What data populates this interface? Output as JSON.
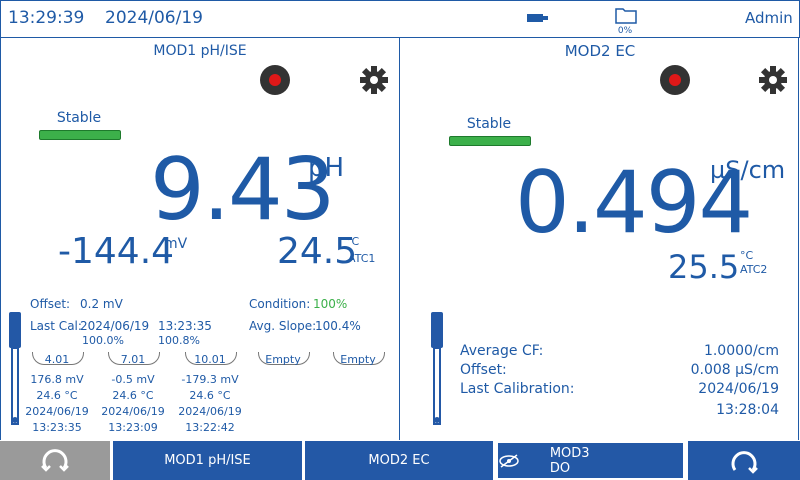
{
  "header": {
    "time": "13:29:39",
    "date": "2024/06/19",
    "storage": "0%",
    "user": "Admin"
  },
  "panels": [
    {
      "title": "MOD1 pH/ISE",
      "status": "Stable",
      "value": "9.43",
      "unit": "pH",
      "secondary_value": "-144.4",
      "secondary_unit": "mV",
      "temperature": "24.5",
      "temperature_unit": "°C",
      "probe": "ATC1",
      "offset_label": "Offset:",
      "offset": "0.2 mV",
      "last_cal_label": "Last Cal:",
      "last_cal_date": "2024/06/19",
      "last_cal_time": "13:23:35",
      "slope_1": "100.0%",
      "slope_2": "100.8%",
      "condition_label": "Condition:",
      "condition": "100%",
      "avg_slope_label": "Avg. Slope:",
      "avg_slope": "100.4%",
      "buffers": [
        {
          "label": "4.01",
          "mv": "176.8 mV",
          "temp": "24.6 °C",
          "date": "2024/06/19",
          "time": "13:23:35"
        },
        {
          "label": "7.01",
          "mv": "-0.5 mV",
          "temp": "24.6 °C",
          "date": "2024/06/19",
          "time": "13:23:09"
        },
        {
          "label": "10.01",
          "mv": "-179.3 mV",
          "temp": "24.6 °C",
          "date": "2024/06/19",
          "time": "13:22:42"
        },
        {
          "label": "Empty"
        },
        {
          "label": "Empty"
        }
      ]
    },
    {
      "title": "MOD2 EC",
      "status": "Stable",
      "value": "0.494",
      "unit": "µS/cm",
      "temperature": "25.5",
      "temperature_unit": "°C",
      "probe": "ATC2",
      "info": [
        [
          "Average CF:",
          "1.0000/cm"
        ],
        [
          "Offset:",
          "0.008 µS/cm"
        ],
        [
          "Last Calibration:",
          "2024/06/19"
        ]
      ],
      "last_cal_time": "13:28:04"
    }
  ],
  "tabs": [
    "MOD1 pH/ISE",
    "MOD2 EC",
    "MOD3 DO"
  ]
}
